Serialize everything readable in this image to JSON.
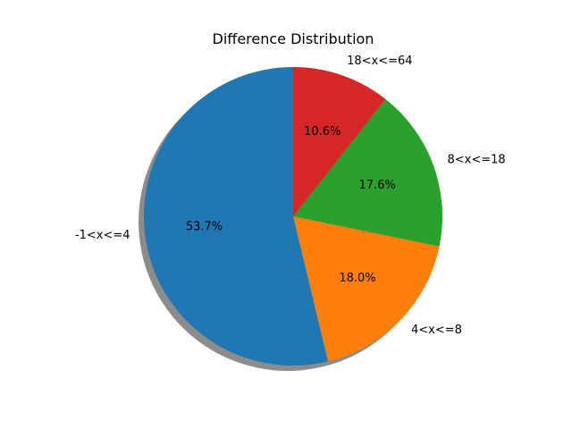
{
  "chart_data": {
    "type": "pie",
    "title": "Difference Distribution",
    "categories": [
      "-1<x<=4",
      "4<x<=8",
      "8<x<=18",
      "18<x<=64"
    ],
    "values": [
      53.7,
      18.0,
      17.6,
      10.6
    ],
    "percent_labels": [
      "53.7%",
      "18.0%",
      "17.6%",
      "10.6%"
    ],
    "colors": [
      "#1f77b4",
      "#ff7f0e",
      "#2ca02c",
      "#d62728"
    ],
    "start_angle_deg": 90,
    "direction": "counterclockwise",
    "shadow": true
  }
}
